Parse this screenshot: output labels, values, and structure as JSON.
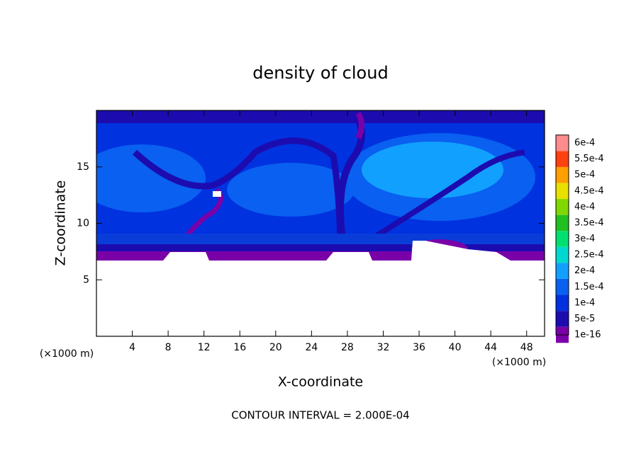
{
  "chart_data": {
    "type": "contour",
    "title": "density of cloud",
    "x_label": "X-coordinate",
    "y_label": "Z-coordinate",
    "x_unit": "(×1000 m)",
    "y_unit": "(×1000 m)",
    "footer": "CONTOUR INTERVAL = 2.000E-04",
    "xlim": [
      0,
      50
    ],
    "xticks": [
      4,
      8,
      12,
      16,
      20,
      24,
      28,
      32,
      36,
      40,
      44,
      48
    ],
    "ylim": [
      0,
      20
    ],
    "yticks": [
      5,
      10,
      15
    ],
    "colorbar": {
      "levels": [
        1e-16,
        {
          "value": 5e-05,
          "label": "5e-5"
        },
        {
          "value": 0.0001,
          "label": "1e-4"
        },
        {
          "value": 0.00015,
          "label": "1.5e-4"
        },
        {
          "value": 0.0002,
          "label": "2e-4"
        },
        {
          "value": 0.00025,
          "label": "2.5e-4"
        },
        {
          "value": 0.0003,
          "label": "3e-4"
        },
        {
          "value": 0.00035,
          "label": "3.5e-4"
        },
        {
          "value": 0.0004,
          "label": "4e-4"
        },
        {
          "value": 0.00045,
          "label": "4.5e-4"
        },
        {
          "value": 0.0005,
          "label": "5e-4"
        },
        {
          "value": 0.00055,
          "label": "5.5e-4"
        },
        {
          "value": 0.0006,
          "label": "6e-4"
        }
      ],
      "colors": [
        "#7a00a8",
        "#1c0cb0",
        "#0030e0",
        "#0a60f0",
        "#12a0ff",
        "#00d8d0",
        "#00e070",
        "#20c020",
        "#80d800",
        "#e8e000",
        "#ffa000",
        "#ff4010",
        "#ff8c8c"
      ]
    }
  }
}
